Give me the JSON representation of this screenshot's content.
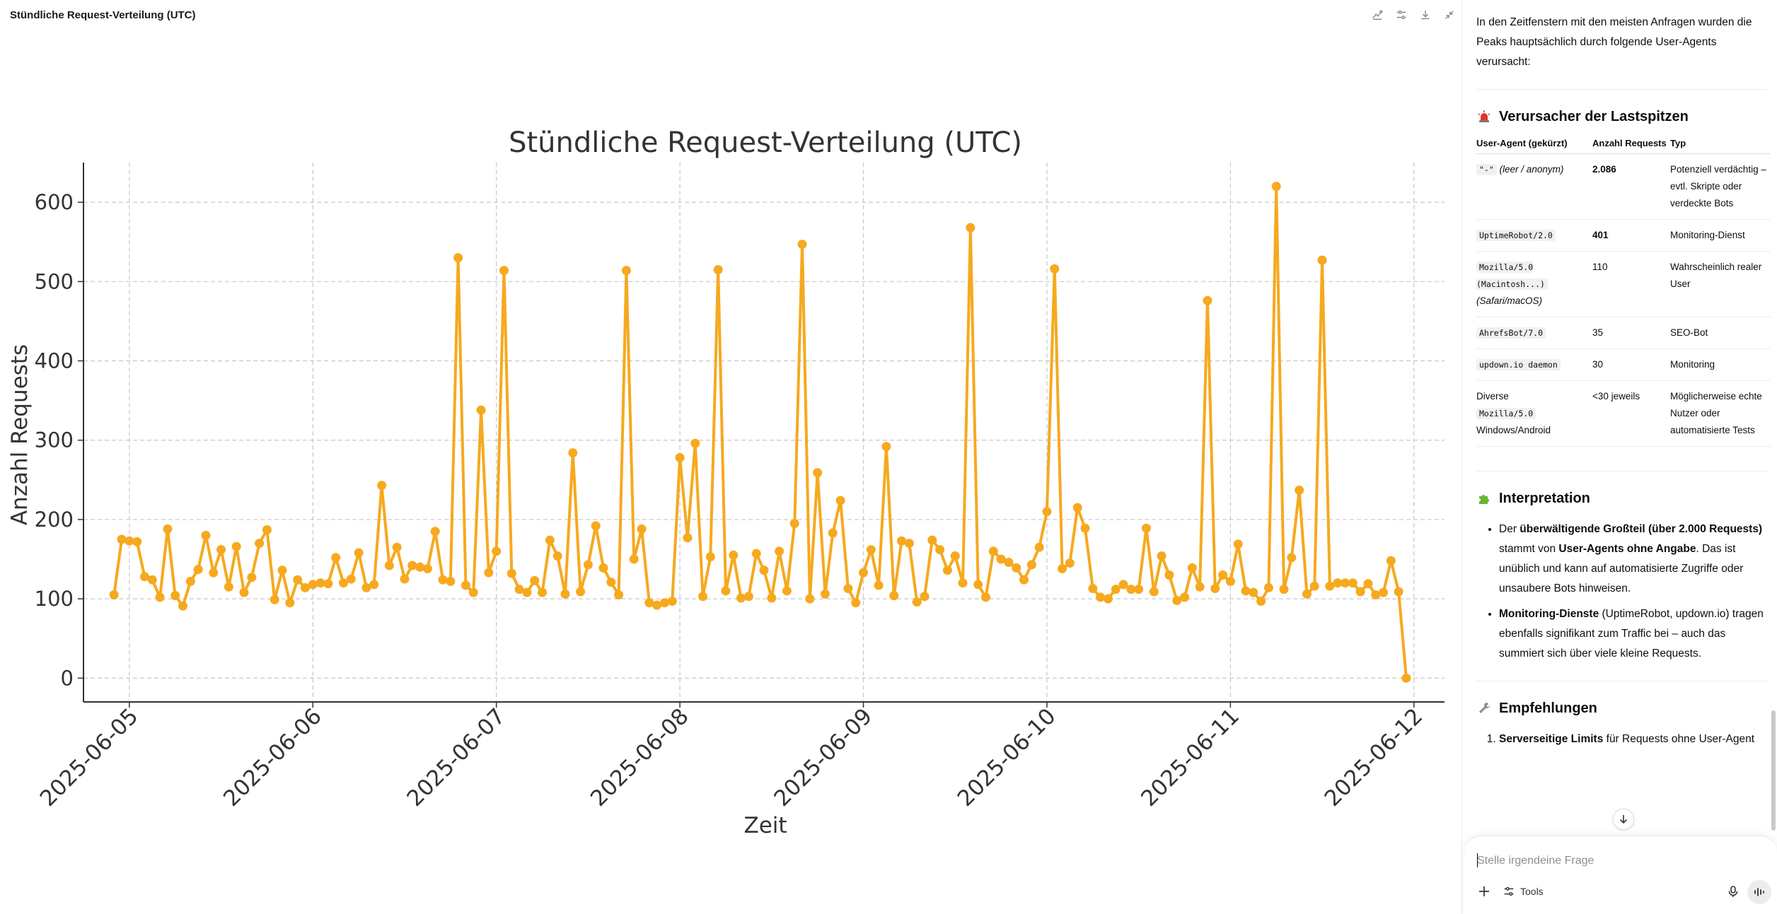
{
  "panel": {
    "title": "Stündliche Request-Verteilung (UTC)",
    "tools": [
      "chart-style-icon",
      "sliders-icon",
      "download-icon",
      "collapse-icon"
    ]
  },
  "chart_data": {
    "type": "line",
    "title": "Stündliche Request-Verteilung (UTC)",
    "xlabel": "Zeit",
    "ylabel": "Anzahl Requests",
    "x_axis_type": "date",
    "x_ticks": [
      "2025-06-05",
      "2025-06-06",
      "2025-06-07",
      "2025-06-08",
      "2025-06-09",
      "2025-06-10",
      "2025-06-11",
      "2025-06-12"
    ],
    "y_ticks": [
      0,
      100,
      200,
      300,
      400,
      500,
      600
    ],
    "xlim": [
      "2025-06-04T18:00",
      "2025-06-12T04:00"
    ],
    "ylim": [
      -30,
      650
    ],
    "grid": true,
    "color": "#f6a91f",
    "marker": "circle",
    "series": [
      {
        "start": "2025-06-04T22:00",
        "interval_hours": 1,
        "values": [
          105,
          175,
          173,
          172,
          128,
          124,
          102,
          188,
          104,
          91,
          122,
          137,
          180,
          133,
          162,
          115,
          166,
          108,
          127,
          170,
          187,
          99,
          136,
          95,
          124,
          114,
          118,
          120,
          119,
          152,
          120,
          125,
          158,
          114,
          118,
          243,
          142,
          165,
          125,
          142,
          140,
          138,
          185,
          124,
          122,
          530,
          117,
          108,
          338,
          133,
          160,
          514,
          132,
          112,
          108,
          123,
          108,
          174,
          154,
          106,
          284,
          109,
          143,
          192,
          139,
          121,
          105,
          514,
          150,
          188,
          95,
          92,
          95,
          97,
          278,
          177,
          296,
          103,
          153,
          515,
          110,
          155,
          101,
          103,
          157,
          136,
          101,
          160,
          110,
          195,
          547,
          100,
          259,
          106,
          183,
          224,
          113,
          95,
          133,
          162,
          117,
          292,
          104,
          173,
          170,
          96,
          103,
          174,
          162,
          136,
          154,
          120,
          568,
          118,
          102,
          160,
          150,
          146,
          139,
          124,
          143,
          165,
          210,
          516,
          138,
          145,
          215,
          189,
          113,
          102,
          100,
          112,
          118,
          112,
          112,
          189,
          109,
          154,
          130,
          98,
          102,
          139,
          115,
          476,
          113,
          130,
          122,
          169,
          110,
          108,
          97,
          114,
          620,
          112,
          152,
          237,
          106,
          116,
          527,
          116,
          120,
          120,
          120,
          109,
          119,
          105,
          108,
          148,
          109,
          0
        ]
      }
    ]
  },
  "sidebar": {
    "intro": "In den Zeitfenstern mit den meisten Anfragen wurden die Peaks hauptsächlich durch folgende User-Agents verursacht:",
    "section1": {
      "icon": "alarm-light-icon",
      "heading": "Verursacher der Lastspitzen",
      "table": {
        "headers": [
          "User-Agent (gekürzt)",
          "Anzahl Requests",
          "Typ"
        ],
        "rows": [
          {
            "code": "\"-\"",
            "note": "(leer / anonym)",
            "count": "2.086",
            "type": "Potenziell verdächtig – evtl. Skripte oder verdeckte Bots"
          },
          {
            "code": "UptimeRobot/2.0",
            "count": "401",
            "type": "Monitoring-Dienst"
          },
          {
            "code": "Mozilla/5.0 (Macintosh...)",
            "note": "(Safari/macOS)",
            "count": "110",
            "type": "Wahrscheinlich realer User"
          },
          {
            "code": "AhrefsBot/7.0",
            "count": "35",
            "type": "SEO-Bot"
          },
          {
            "code": "updown.io daemon",
            "count": "30",
            "type": "Monitoring"
          },
          {
            "pre": "Diverse",
            "code": "Mozilla/5.0",
            "post": "Windows/Android",
            "count": "<30 jeweils",
            "type": "Möglicherweise echte Nutzer oder automatisierte Tests"
          }
        ]
      }
    },
    "section2": {
      "icon": "puzzle-icon",
      "heading": "Interpretation",
      "bullets": [
        {
          "t1": "Der ",
          "b": "überwältigende Großteil (über 2.000 Requests)",
          "t2": " stammt von ",
          "b2": "User-Agents ohne Angabe",
          "t3": ". Das ist unüblich und kann auf automatisierte Zugriffe oder unsaubere Bots hinweisen."
        },
        {
          "b": "Monitoring-Dienste",
          "t2": " (UptimeRobot, updown.io) tragen ebenfalls signifikant zum Traffic bei – auch das summiert sich über viele kleine Requests."
        }
      ]
    },
    "section3": {
      "icon": "wrench-icon",
      "heading": "Empfehlungen",
      "item1_bold": "Serverseitige Limits",
      "item1_text": " für Requests ohne User-Agent"
    }
  },
  "composer": {
    "placeholder": "Stelle irgendeine Frage",
    "tools_label": "Tools"
  }
}
